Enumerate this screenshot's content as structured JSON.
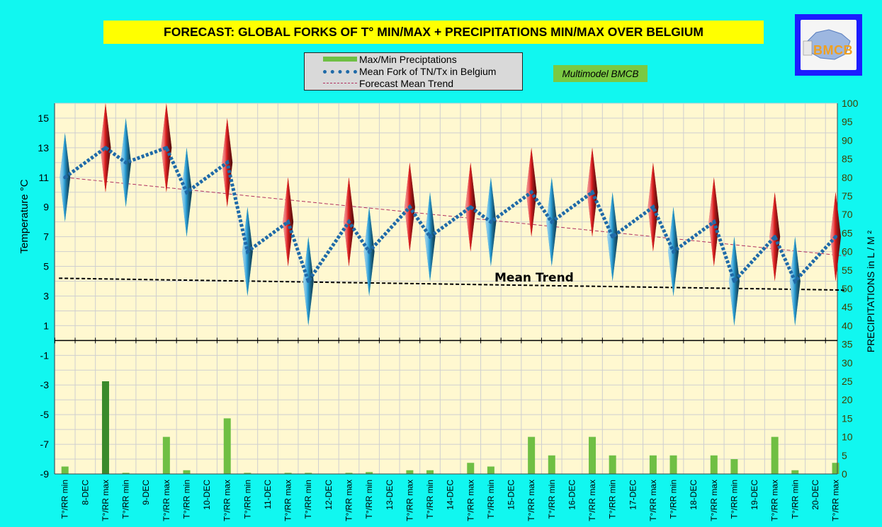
{
  "title": "FORECAST: GLOBAL FORKS OF T° MIN/MAX + PRECIPITATIONS MIN/MAX OVER  BELGIUM",
  "legend": {
    "items": [
      {
        "label": "Max/Min Preciptations",
        "color": "#6fbf44"
      },
      {
        "label": "Mean Fork of TN/Tx in Belgium",
        "color": "#1f6aa8"
      },
      {
        "label": "Forecast Mean Trend",
        "color": "#b03060"
      }
    ]
  },
  "badge": "Multimodel BMCB",
  "logo": {
    "text": "BMCB"
  },
  "annotation": "Mean Trend",
  "colors": {
    "background": "#11f7f0",
    "plot": "#fff8d0",
    "min_diamond": "#2a9fd6",
    "max_diamond": "#e02020",
    "bars": "#6fbf44",
    "bars_dark": "#3a8a2c",
    "mean_line": "#1f6aa8",
    "trend": "#b03060",
    "axis_text_right": "#404000"
  },
  "chart_data": {
    "type": "line",
    "ylabel": "Temperature  °C",
    "y2label": "PRECIPITATIONS in L / M ²",
    "ylim": [
      -9,
      16
    ],
    "y_ticks": [
      15,
      13,
      11,
      9,
      7,
      5,
      3,
      1,
      -1,
      -3,
      -5,
      -7,
      -9
    ],
    "y2lim": [
      0,
      100
    ],
    "y2_ticks": [
      100,
      95,
      90,
      85,
      80,
      75,
      70,
      65,
      60,
      55,
      50,
      45,
      40,
      35,
      30,
      25,
      20,
      15,
      10,
      5,
      0
    ],
    "categories": [
      "T°/RR min",
      "8-DEC",
      "T°/RR max",
      "T°/RR min",
      "9-DEC",
      "T°/RR max",
      "T°/RR min",
      "10-DEC",
      "T°/RR max",
      "T°/RR min",
      "11-DEC",
      "T°/RR max",
      "T°/RR min",
      "12-DEC",
      "T°/RR max",
      "T°/RR min",
      "13-DEC",
      "T°/RR max",
      "T°/RR min",
      "14-DEC",
      "T°/RR max",
      "T°/RR min",
      "15-DEC",
      "T°/RR max",
      "T°/RR min",
      "16-DEC",
      "T°/RR max",
      "T°/RR min",
      "17-DEC",
      "T°/RR max",
      "T°/RR min",
      "18-DEC",
      "T°/RR max",
      "T°/RR min",
      "19-DEC",
      "T°/RR max",
      "T°/RR min",
      "20-DEC",
      "T°/RR max"
    ],
    "series": [
      {
        "name": "Mean Fork of TN/Tx in Belgium",
        "points": [
          {
            "x": 0,
            "y": 11
          },
          {
            "x": 2,
            "y": 13
          },
          {
            "x": 3,
            "y": 12
          },
          {
            "x": 5,
            "y": 13
          },
          {
            "x": 6,
            "y": 10
          },
          {
            "x": 8,
            "y": 12
          },
          {
            "x": 9,
            "y": 6
          },
          {
            "x": 11,
            "y": 8
          },
          {
            "x": 12,
            "y": 4
          },
          {
            "x": 14,
            "y": 8
          },
          {
            "x": 15,
            "y": 6
          },
          {
            "x": 17,
            "y": 9
          },
          {
            "x": 18,
            "y": 7
          },
          {
            "x": 20,
            "y": 9
          },
          {
            "x": 21,
            "y": 8
          },
          {
            "x": 23,
            "y": 10
          },
          {
            "x": 24,
            "y": 8
          },
          {
            "x": 26,
            "y": 10
          },
          {
            "x": 27,
            "y": 7
          },
          {
            "x": 29,
            "y": 9
          },
          {
            "x": 30,
            "y": 6
          },
          {
            "x": 32,
            "y": 8
          },
          {
            "x": 33,
            "y": 4
          },
          {
            "x": 35,
            "y": 7
          },
          {
            "x": 36,
            "y": 4
          },
          {
            "x": 38,
            "y": 7
          }
        ]
      },
      {
        "name": "T° min forks",
        "points": [
          {
            "x": 0,
            "low": 8,
            "high": 14
          },
          {
            "x": 3,
            "low": 9,
            "high": 15
          },
          {
            "x": 6,
            "low": 7,
            "high": 13
          },
          {
            "x": 9,
            "low": 3,
            "high": 9
          },
          {
            "x": 12,
            "low": 1,
            "high": 7
          },
          {
            "x": 15,
            "low": 3,
            "high": 9
          },
          {
            "x": 18,
            "low": 4,
            "high": 10
          },
          {
            "x": 21,
            "low": 5,
            "high": 11
          },
          {
            "x": 24,
            "low": 5,
            "high": 11
          },
          {
            "x": 27,
            "low": 4,
            "high": 10
          },
          {
            "x": 30,
            "low": 3,
            "high": 9
          },
          {
            "x": 33,
            "low": 1,
            "high": 7
          },
          {
            "x": 36,
            "low": 1,
            "high": 7
          }
        ]
      },
      {
        "name": "T° max forks",
        "points": [
          {
            "x": 2,
            "low": 10,
            "high": 16
          },
          {
            "x": 5,
            "low": 10,
            "high": 16
          },
          {
            "x": 8,
            "low": 9,
            "high": 15
          },
          {
            "x": 11,
            "low": 5,
            "high": 11
          },
          {
            "x": 14,
            "low": 5,
            "high": 11
          },
          {
            "x": 17,
            "low": 6,
            "high": 12
          },
          {
            "x": 20,
            "low": 6,
            "high": 12
          },
          {
            "x": 23,
            "low": 7,
            "high": 13
          },
          {
            "x": 26,
            "low": 7,
            "high": 13
          },
          {
            "x": 29,
            "low": 6,
            "high": 12
          },
          {
            "x": 32,
            "low": 5,
            "high": 11
          },
          {
            "x": 35,
            "low": 4,
            "high": 10
          },
          {
            "x": 38,
            "low": 4,
            "high": 10
          }
        ]
      },
      {
        "name": "Max/Min Preciptations",
        "axis": "y2",
        "points": [
          {
            "x": 0,
            "y": 2
          },
          {
            "x": 2,
            "y": 25
          },
          {
            "x": 3,
            "y": 0.3
          },
          {
            "x": 5,
            "y": 10
          },
          {
            "x": 6,
            "y": 1
          },
          {
            "x": 8,
            "y": 15
          },
          {
            "x": 9,
            "y": 0.3
          },
          {
            "x": 11,
            "y": 0.3
          },
          {
            "x": 12,
            "y": 0.3
          },
          {
            "x": 14,
            "y": 0.3
          },
          {
            "x": 15,
            "y": 0.5
          },
          {
            "x": 17,
            "y": 1
          },
          {
            "x": 18,
            "y": 1
          },
          {
            "x": 20,
            "y": 3
          },
          {
            "x": 21,
            "y": 2
          },
          {
            "x": 23,
            "y": 10
          },
          {
            "x": 24,
            "y": 5
          },
          {
            "x": 26,
            "y": 10
          },
          {
            "x": 27,
            "y": 5
          },
          {
            "x": 29,
            "y": 5
          },
          {
            "x": 30,
            "y": 5
          },
          {
            "x": 32,
            "y": 5
          },
          {
            "x": 33,
            "y": 4
          },
          {
            "x": 35,
            "y": 10
          },
          {
            "x": 36,
            "y": 1
          },
          {
            "x": 38,
            "y": 3
          }
        ]
      },
      {
        "name": "Forecast Mean Trend",
        "start": {
          "x": 0,
          "y": 11
        },
        "end": {
          "x": 38.5,
          "y": 5.7
        }
      },
      {
        "name": "Mean Trend",
        "start": {
          "x": -0.3,
          "y": 4.2
        },
        "end": {
          "x": 38.5,
          "y": 3.4
        }
      }
    ],
    "grid": true,
    "legend": "top-center"
  }
}
